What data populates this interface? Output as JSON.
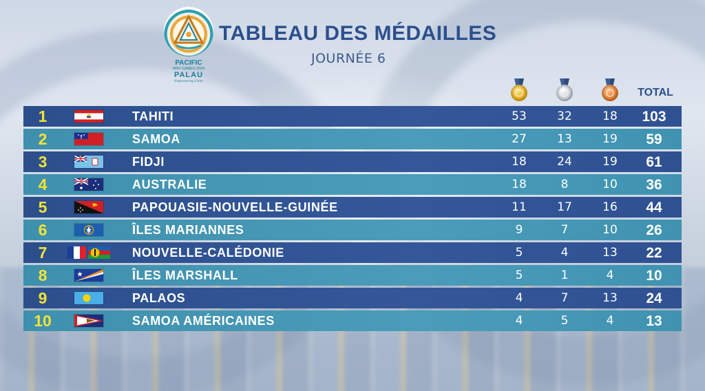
{
  "header": {
    "title": "TABLEAU DES MÉDAILLES",
    "subtitle": "JOURNÉE 6"
  },
  "logo": {
    "line1": "PACIFIC",
    "line2": "MINI GAMES 2025",
    "line3": "PALAU",
    "line4": "Empowering Unity",
    "icon": "pacific-games-emblem-icon"
  },
  "columns": {
    "gold_icon": "gold-medal-icon",
    "silver_icon": "silver-medal-icon",
    "bronze_icon": "bronze-medal-icon",
    "total_label": "TOTAL"
  },
  "colors": {
    "row_dark": "#2c4f8c",
    "row_light": "#4a9cba",
    "rank": "#f2e23a",
    "title": "#2c4f8c"
  },
  "rows": [
    {
      "rank": "1",
      "country": "TAHITI",
      "flag": "tahiti-flag-icon",
      "gold": "53",
      "silver": "32",
      "bronze": "18",
      "total": "103"
    },
    {
      "rank": "2",
      "country": "SAMOA",
      "flag": "samoa-flag-icon",
      "gold": "27",
      "silver": "13",
      "bronze": "19",
      "total": "59"
    },
    {
      "rank": "3",
      "country": "FIDJI",
      "flag": "fiji-flag-icon",
      "gold": "18",
      "silver": "24",
      "bronze": "19",
      "total": "61"
    },
    {
      "rank": "4",
      "country": "AUSTRALIE",
      "flag": "australia-flag-icon",
      "gold": "18",
      "silver": "8",
      "bronze": "10",
      "total": "36"
    },
    {
      "rank": "5",
      "country": "PAPOUASIE-NOUVELLE-GUINÉE",
      "flag": "papua-new-guinea-flag-icon",
      "gold": "11",
      "silver": "17",
      "bronze": "16",
      "total": "44"
    },
    {
      "rank": "6",
      "country": "ÎLES MARIANNES",
      "flag": "northern-mariana-islands-flag-icon",
      "gold": "9",
      "silver": "7",
      "bronze": "10",
      "total": "26"
    },
    {
      "rank": "7",
      "country": "NOUVELLE-CALÉDONIE",
      "flag": "new-caledonia-flags-icon",
      "gold": "5",
      "silver": "4",
      "bronze": "13",
      "total": "22"
    },
    {
      "rank": "8",
      "country": "ÎLES MARSHALL",
      "flag": "marshall-islands-flag-icon",
      "gold": "5",
      "silver": "1",
      "bronze": "4",
      "total": "10"
    },
    {
      "rank": "9",
      "country": "PALAOS",
      "flag": "palau-flag-icon",
      "gold": "4",
      "silver": "7",
      "bronze": "13",
      "total": "24"
    },
    {
      "rank": "10",
      "country": "SAMOA AMÉRICAINES",
      "flag": "american-samoa-flag-icon",
      "gold": "4",
      "silver": "5",
      "bronze": "4",
      "total": "13"
    }
  ]
}
